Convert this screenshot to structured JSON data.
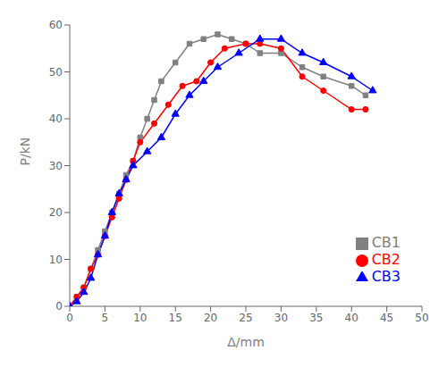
{
  "chart_data": {
    "type": "line",
    "xlabel": "Δ/mm",
    "ylabel": "P/kN",
    "xlim": [
      0,
      50
    ],
    "ylim": [
      0,
      60
    ],
    "xticks": [
      0,
      5,
      10,
      15,
      20,
      25,
      30,
      35,
      40,
      45,
      50
    ],
    "yticks": [
      0,
      10,
      20,
      30,
      40,
      50,
      60
    ],
    "grid": false,
    "legend": "lower right",
    "series": [
      {
        "name": "CB1",
        "color": "#808080",
        "marker": "square",
        "x": [
          0,
          1,
          2,
          3,
          4,
          5,
          6,
          7,
          8,
          9,
          10,
          11,
          12,
          13,
          15,
          17,
          19,
          21,
          23,
          25,
          27,
          30,
          33,
          36,
          40,
          42
        ],
        "values": [
          0,
          2,
          4,
          8,
          12,
          16,
          20,
          24,
          28,
          31,
          36,
          40,
          44,
          48,
          52,
          56,
          57,
          58,
          57,
          56,
          54,
          54,
          51,
          49,
          47,
          45
        ]
      },
      {
        "name": "CB2",
        "color": "#ff0000",
        "marker": "circle",
        "x": [
          0,
          1,
          2,
          3,
          4,
          5,
          6,
          7,
          8,
          9,
          10,
          12,
          14,
          16,
          18,
          20,
          22,
          25,
          27,
          30,
          33,
          36,
          40,
          42
        ],
        "values": [
          0,
          2,
          4,
          8,
          11,
          15,
          19,
          23,
          27,
          31,
          35,
          39,
          43,
          47,
          48,
          52,
          55,
          56,
          56,
          55,
          49,
          46,
          42,
          42
        ]
      },
      {
        "name": "CB3",
        "color": "#0000ff",
        "marker": "triangle",
        "x": [
          0,
          1,
          2,
          3,
          4,
          5,
          6,
          7,
          8,
          9,
          11,
          13,
          15,
          17,
          19,
          21,
          24,
          27,
          30,
          33,
          36,
          40,
          43
        ],
        "values": [
          0,
          1,
          3,
          6,
          11,
          15,
          20,
          24,
          27,
          30,
          33,
          36,
          41,
          45,
          48,
          51,
          54,
          57,
          57,
          54,
          52,
          49,
          46
        ]
      }
    ]
  }
}
